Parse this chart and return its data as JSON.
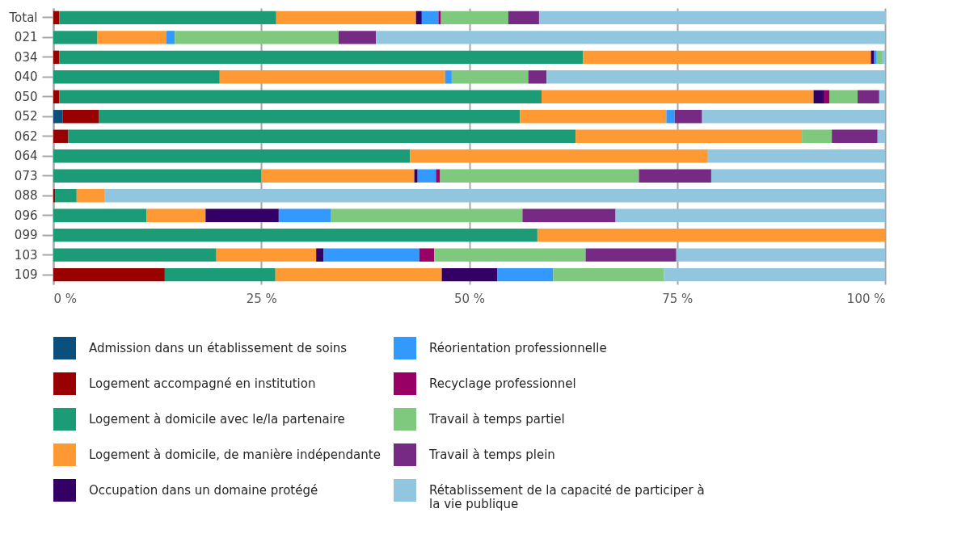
{
  "chart_data": {
    "type": "bar",
    "orientation": "horizontal",
    "stacked": true,
    "categories": [
      "Total",
      "021",
      "034",
      "040",
      "050",
      "052",
      "062",
      "064",
      "073",
      "088",
      "096",
      "099",
      "103",
      "109"
    ],
    "series": [
      {
        "name": "Admission dans un établissement de soins",
        "color": "#0b4f7c",
        "values": [
          0,
          0,
          0,
          0,
          0,
          1.1,
          0,
          0,
          0,
          0,
          0,
          0,
          0,
          0
        ]
      },
      {
        "name": "Logement accompagné en institution",
        "color": "#990000",
        "values": [
          0.7,
          0,
          0.7,
          0,
          0.7,
          4.4,
          1.8,
          0,
          0,
          0.2,
          0,
          0,
          0,
          13.4
        ]
      },
      {
        "name": "Logement à domicile avec le/la partenaire",
        "color": "#1b9c77",
        "values": [
          26.1,
          5.3,
          63.0,
          20.0,
          58.0,
          50.6,
          61.0,
          42.9,
          25.0,
          2.6,
          11.2,
          58.2,
          19.6,
          13.3
        ]
      },
      {
        "name": "Logement à domicile, de manière indépendante",
        "color": "#fe9933",
        "values": [
          16.8,
          8.3,
          34.6,
          27.1,
          32.7,
          17.6,
          27.2,
          35.8,
          18.4,
          3.4,
          7.1,
          41.8,
          12.0,
          20.0
        ]
      },
      {
        "name": "Occupation dans un domaine protégé",
        "color": "#330066",
        "values": [
          0.7,
          0,
          0.4,
          0,
          1.3,
          0,
          0,
          0,
          0.4,
          0,
          8.8,
          0,
          0.9,
          6.7
        ]
      },
      {
        "name": "Réorientation professionnelle",
        "color": "#3399fe",
        "values": [
          2.0,
          1.0,
          0.3,
          0.8,
          0,
          1.0,
          0,
          0,
          2.2,
          0,
          6.3,
          0,
          11.5,
          6.7
        ]
      },
      {
        "name": "Recyclage professionnel",
        "color": "#990066",
        "values": [
          0.3,
          0,
          0,
          0,
          0.6,
          0,
          0,
          0,
          0.5,
          0,
          0,
          0,
          1.8,
          0
        ]
      },
      {
        "name": "Travail à temps partiel",
        "color": "#7fc97f",
        "values": [
          8.1,
          19.7,
          0.7,
          9.2,
          3.4,
          0,
          3.6,
          0,
          23.9,
          0,
          23.0,
          0,
          18.2,
          13.3
        ]
      },
      {
        "name": "Travail à temps plein",
        "color": "#772a83",
        "values": [
          3.7,
          4.5,
          0,
          2.2,
          2.6,
          3.3,
          5.5,
          0,
          8.7,
          0,
          11.2,
          0,
          10.9,
          0
        ]
      },
      {
        "name": "Rétablissement de la capacité de participer à la vie publique",
        "color": "#92c5de",
        "values": [
          41.7,
          61.2,
          0.3,
          40.7,
          0.7,
          22.0,
          0.9,
          21.3,
          20.9,
          93.8,
          32.4,
          0,
          25.1,
          26.6
        ]
      }
    ],
    "xlim": [
      0,
      100
    ],
    "xticks": [
      {
        "value": 0,
        "label": "0 %"
      },
      {
        "value": 25,
        "label": "25 %"
      },
      {
        "value": 50,
        "label": "50 %"
      },
      {
        "value": 75,
        "label": "75 %"
      },
      {
        "value": 100,
        "label": "100 %"
      }
    ],
    "grid": "x",
    "legend": "bottom"
  }
}
